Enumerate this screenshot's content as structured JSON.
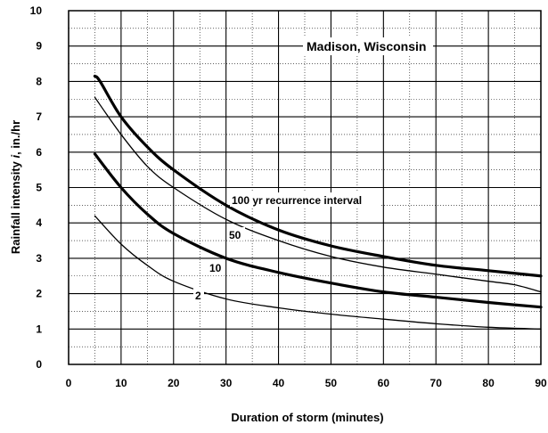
{
  "chart_data": {
    "type": "line",
    "title": "Madison, Wisconsin",
    "xlabel": "Duration of storm (minutes)",
    "ylabel_prefix": "Rainfall intensity ",
    "ylabel_var": "i",
    "ylabel_suffix": ", in./hr",
    "xlim": [
      0,
      90
    ],
    "ylim": [
      0,
      10
    ],
    "x_major_ticks": [
      0,
      10,
      20,
      30,
      40,
      50,
      60,
      70,
      80,
      90
    ],
    "x_minor_ticks": [
      5,
      15,
      25,
      35,
      45,
      55,
      65,
      75,
      85
    ],
    "y_major_ticks": [
      0,
      1,
      2,
      3,
      4,
      5,
      6,
      7,
      8,
      9,
      10
    ],
    "y_minor_ticks": [
      0.5,
      1.5,
      2.5,
      3.5,
      4.5,
      5.5,
      6.5,
      7.5,
      8.5,
      9.5
    ],
    "grid": true,
    "series": [
      {
        "name": "100 yr recurrence interval",
        "heavy": true,
        "x": [
          5,
          6,
          10,
          15,
          20,
          30,
          40,
          50,
          60,
          70,
          80,
          90
        ],
        "y": [
          8.15,
          8.0,
          7.0,
          6.15,
          5.5,
          4.5,
          3.8,
          3.35,
          3.05,
          2.8,
          2.65,
          2.5
        ]
      },
      {
        "name": "50",
        "heavy": false,
        "x": [
          5,
          10,
          15,
          20,
          30,
          40,
          50,
          60,
          70,
          80,
          85,
          90
        ],
        "y": [
          7.55,
          6.5,
          5.6,
          5.0,
          4.1,
          3.5,
          3.05,
          2.75,
          2.55,
          2.35,
          2.25,
          2.05
        ]
      },
      {
        "name": "10",
        "heavy": true,
        "x": [
          5,
          10,
          15,
          20,
          30,
          40,
          50,
          60,
          70,
          80,
          90
        ],
        "y": [
          5.95,
          5.0,
          4.25,
          3.7,
          3.0,
          2.6,
          2.3,
          2.05,
          1.9,
          1.75,
          1.62
        ]
      },
      {
        "name": "2",
        "heavy": false,
        "x": [
          5,
          10,
          15,
          20,
          30,
          40,
          50,
          60,
          70,
          80,
          90
        ],
        "y": [
          4.2,
          3.4,
          2.8,
          2.35,
          1.85,
          1.6,
          1.42,
          1.28,
          1.15,
          1.05,
          1.0
        ]
      }
    ]
  }
}
